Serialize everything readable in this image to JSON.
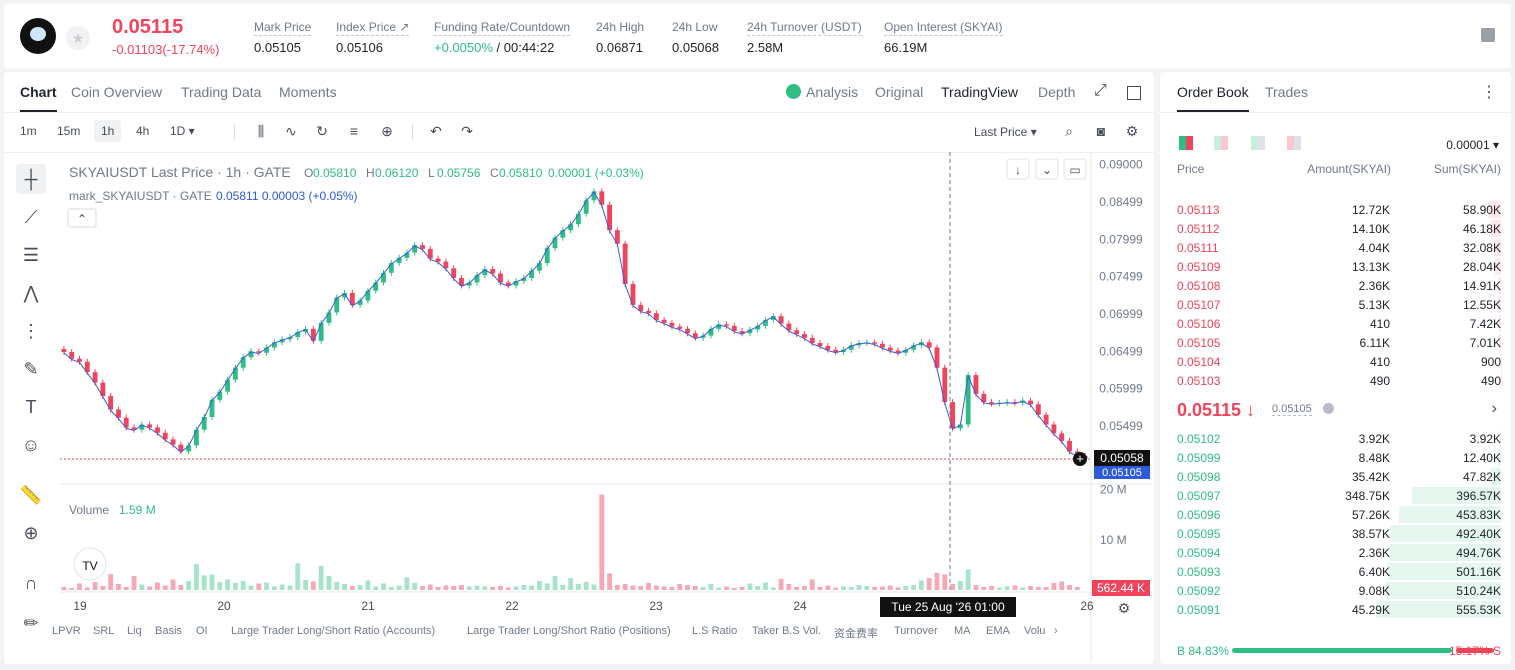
{
  "header": {
    "last_price": "0.05115",
    "change": "-0.01103(-17.74%)",
    "stats": [
      {
        "label": "Mark Price",
        "value": "0.05105"
      },
      {
        "label": "Index Price ↗",
        "value": "0.05106"
      },
      {
        "label": "Funding Rate/Countdown",
        "value_green": "+0.0050%",
        "value": " / 00:44:22"
      },
      {
        "label": "24h High",
        "value": "0.06871"
      },
      {
        "label": "24h Low",
        "value": "0.05068"
      },
      {
        "label": "24h Turnover (USDT)",
        "value": "2.58M"
      },
      {
        "label": "Open Interest (SKYAI)",
        "value": "66.19M"
      }
    ]
  },
  "chart_tabs": [
    "Chart",
    "Coin Overview",
    "Trading Data",
    "Moments"
  ],
  "chart_views": [
    "Analysis",
    "Original",
    "TradingView",
    "Depth"
  ],
  "timeframes": [
    "1m",
    "15m",
    "1h",
    "4h",
    "1D ▾"
  ],
  "price_source": "Last Price ▾",
  "legend": {
    "main_title": "SKYAIUSDT Last Price · 1h · GATE",
    "ohlc": [
      {
        "k": "O",
        "v": "0.05810"
      },
      {
        "k": "H",
        "v": "0.06120"
      },
      {
        "k": "L",
        "v": "0.05756"
      },
      {
        "k": "C",
        "v": "0.05810"
      }
    ],
    "change": "0.00001 (+0.03%)",
    "mark_title": "mark_SKYAIUSDT · GATE",
    "mark_value": "0.05811  0.00003  (+0.05%)",
    "volume_label": "Volume",
    "volume_value": "1.59 M"
  },
  "price_axis": [
    "0.09000",
    "0.08499",
    "0.07999",
    "0.07499",
    "0.06999",
    "0.06499",
    "0.05999",
    "0.05499"
  ],
  "price_tags": {
    "last": "0.05058",
    "mark": "0.05105"
  },
  "volume_axis": [
    "20 M",
    "10 M"
  ],
  "volume_tag": "562.44 K",
  "time_axis": [
    "19",
    "20",
    "21",
    "22",
    "23",
    "24",
    "26"
  ],
  "crosshair_time": "Tue 25 Aug '26   01:00",
  "indicators": [
    "LPVR",
    "SRL",
    "Liq",
    "Basis",
    "OI",
    "Large Trader Long/Short Ratio (Accounts)",
    "Large Trader Long/Short Ratio (Positions)",
    "L.S Ratio",
    "Taker B.S Vol.",
    "资金费率",
    "Turnover",
    "MA",
    "EMA",
    "Volu"
  ],
  "chart_data": {
    "type": "candlestick",
    "title": "SKYAIUSDT Last Price · 1h · GATE",
    "ylim": [
      0.0475,
      0.091
    ],
    "close": [
      0.0649,
      0.064,
      0.0636,
      0.0622,
      0.0608,
      0.059,
      0.0572,
      0.0561,
      0.0548,
      0.0545,
      0.0552,
      0.0548,
      0.0541,
      0.0532,
      0.0525,
      0.0516,
      0.0524,
      0.0545,
      0.0562,
      0.0585,
      0.0596,
      0.0612,
      0.0628,
      0.0642,
      0.065,
      0.0648,
      0.0655,
      0.0662,
      0.0666,
      0.0669,
      0.0676,
      0.068,
      0.0664,
      0.0688,
      0.0702,
      0.0722,
      0.0728,
      0.0712,
      0.0718,
      0.0731,
      0.0742,
      0.0755,
      0.0768,
      0.0775,
      0.0782,
      0.0792,
      0.0787,
      0.0774,
      0.077,
      0.0761,
      0.0748,
      0.0738,
      0.0742,
      0.0752,
      0.076,
      0.0754,
      0.0742,
      0.0738,
      0.0744,
      0.0748,
      0.0758,
      0.0768,
      0.0788,
      0.0802,
      0.0812,
      0.082,
      0.0834,
      0.0852,
      0.0864,
      0.0846,
      0.0812,
      0.0794,
      0.074,
      0.0712,
      0.0704,
      0.0701,
      0.0692,
      0.0688,
      0.0683,
      0.068,
      0.0674,
      0.0668,
      0.0671,
      0.068,
      0.0686,
      0.0684,
      0.0677,
      0.0674,
      0.0679,
      0.0684,
      0.0692,
      0.0697,
      0.0687,
      0.0678,
      0.0673,
      0.0668,
      0.0661,
      0.0657,
      0.0652,
      0.0649,
      0.0652,
      0.0658,
      0.0661,
      0.0662,
      0.066,
      0.0655,
      0.0651,
      0.0648,
      0.0652,
      0.0658,
      0.0662,
      0.0655,
      0.0628,
      0.0582,
      0.0547,
      0.0552,
      0.0618,
      0.0593,
      0.0582,
      0.058,
      0.0581,
      0.0582,
      0.0581,
      0.0584,
      0.0579,
      0.0565,
      0.0552,
      0.054,
      0.053,
      0.0516,
      0.051,
      0.0506
    ],
    "volume_m": [
      0.6,
      0.4,
      1.3,
      0.5,
      1.6,
      0.8,
      3.2,
      1.2,
      0.6,
      2.8,
      1.1,
      0.7,
      1.5,
      0.9,
      2.1,
      1.0,
      1.8,
      5.2,
      2.9,
      3.1,
      1.6,
      2.1,
      1.4,
      1.8,
      0.9,
      1.3,
      1.5,
      0.7,
      1.1,
      0.9,
      5.3,
      2.0,
      1.7,
      4.8,
      2.8,
      1.6,
      1.2,
      0.8,
      1.0,
      1.9,
      0.7,
      1.3,
      0.6,
      0.9,
      2.5,
      1.4,
      0.8,
      1.1,
      0.6,
      0.9,
      0.8,
      1.0,
      0.7,
      0.9,
      0.7,
      0.6,
      0.8,
      0.5,
      0.7,
      1.0,
      0.9,
      1.8,
      1.3,
      2.8,
      1.0,
      2.4,
      1.2,
      1.6,
      1.1,
      19.0,
      3.3,
      1.0,
      1.2,
      0.9,
      0.8,
      1.4,
      0.9,
      0.7,
      0.6,
      1.2,
      1.0,
      0.8,
      0.6,
      1.2,
      0.5,
      0.7,
      0.4,
      0.6,
      1.3,
      0.8,
      1.5,
      0.5,
      2.2,
      1.2,
      0.6,
      0.8,
      2.1,
      0.6,
      0.9,
      0.5,
      0.7,
      0.6,
      1.0,
      0.8,
      0.6,
      0.7,
      0.9,
      0.5,
      0.8,
      1.0,
      1.9,
      2.4,
      3.4,
      3.1,
      1.2,
      1.8,
      4.1,
      1.0,
      0.6,
      0.8,
      0.5,
      0.7,
      0.9,
      0.5,
      0.8,
      0.6,
      0.6,
      1.4,
      1.7,
      1.0,
      0.6
    ]
  },
  "orderbook": {
    "tabs": [
      "Order Book",
      "Trades"
    ],
    "precision": "0.00001 ▾",
    "columns": [
      "Price",
      "Amount(SKYAI)",
      "Sum(SKYAI)"
    ],
    "asks": [
      {
        "price": "0.05113",
        "amount": "12.72K",
        "sum": "58.90K",
        "depth": 0.106
      },
      {
        "price": "0.05112",
        "amount": "14.10K",
        "sum": "46.18K",
        "depth": 0.083
      },
      {
        "price": "0.05111",
        "amount": "4.04K",
        "sum": "32.08K",
        "depth": 0.058
      },
      {
        "price": "0.05109",
        "amount": "13.13K",
        "sum": "28.04K",
        "depth": 0.05
      },
      {
        "price": "0.05108",
        "amount": "2.36K",
        "sum": "14.91K",
        "depth": 0.027
      },
      {
        "price": "0.05107",
        "amount": "5.13K",
        "sum": "12.55K",
        "depth": 0.023
      },
      {
        "price": "0.05106",
        "amount": "410",
        "sum": "7.42K",
        "depth": 0.013
      },
      {
        "price": "0.05105",
        "amount": "6.11K",
        "sum": "7.01K",
        "depth": 0.013
      },
      {
        "price": "0.05104",
        "amount": "410",
        "sum": "900",
        "depth": 0.002
      },
      {
        "price": "0.05103",
        "amount": "490",
        "sum": "490",
        "depth": 0.001
      }
    ],
    "mid_price": "0.05115 ↓",
    "mid_mark": "0.05105",
    "bids": [
      {
        "price": "0.05102",
        "amount": "3.92K",
        "sum": "3.92K",
        "depth": 0.007
      },
      {
        "price": "0.05099",
        "amount": "8.48K",
        "sum": "12.40K",
        "depth": 0.022
      },
      {
        "price": "0.05098",
        "amount": "35.42K",
        "sum": "47.82K",
        "depth": 0.086
      },
      {
        "price": "0.05097",
        "amount": "348.75K",
        "sum": "396.57K",
        "depth": 0.714
      },
      {
        "price": "0.05096",
        "amount": "57.26K",
        "sum": "453.83K",
        "depth": 0.817
      },
      {
        "price": "0.05095",
        "amount": "38.57K",
        "sum": "492.40K",
        "depth": 0.886
      },
      {
        "price": "0.05094",
        "amount": "2.36K",
        "sum": "494.76K",
        "depth": 0.891
      },
      {
        "price": "0.05093",
        "amount": "6.40K",
        "sum": "501.16K",
        "depth": 0.902
      },
      {
        "price": "0.05092",
        "amount": "9.08K",
        "sum": "510.24K",
        "depth": 0.918
      },
      {
        "price": "0.05091",
        "amount": "45.29K",
        "sum": "555.53K",
        "depth": 1.0
      }
    ],
    "buy_ratio": "B 84.83%",
    "sell_ratio": "15.17% S",
    "buy_fraction": 0.8483
  },
  "colors": {
    "up": "#2ebd85",
    "down": "#f0435c",
    "mark_line": "#3b5bdb"
  }
}
